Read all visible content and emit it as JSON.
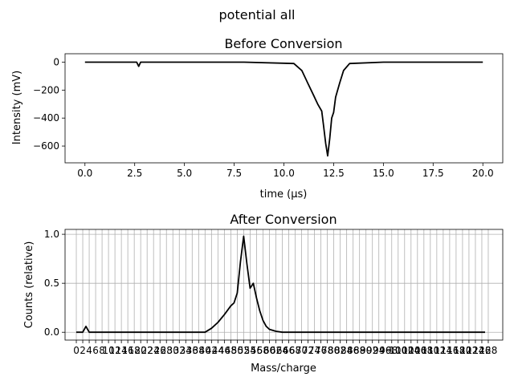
{
  "figure": {
    "suptitle": "potential all"
  },
  "chart_data": [
    {
      "type": "line",
      "title": "Before Conversion",
      "xlabel": "time (μs)",
      "ylabel": "Intensity (mV)",
      "xlim": [
        -1.0,
        21.0
      ],
      "ylim": [
        -720,
        60
      ],
      "grid": false,
      "xticks": [
        0.0,
        2.5,
        5.0,
        7.5,
        10.0,
        12.5,
        15.0,
        17.5,
        20.0
      ],
      "xtick_labels": [
        "0.0",
        "2.5",
        "5.0",
        "7.5",
        "10.0",
        "12.5",
        "15.0",
        "17.5",
        "20.0"
      ],
      "yticks": [
        0,
        -200,
        -400,
        -600
      ],
      "ytick_labels": [
        "0",
        "−200",
        "−400",
        "−600"
      ],
      "series": [
        {
          "color": "#000000",
          "x": [
            0.0,
            2.0,
            2.6,
            2.7,
            2.8,
            5.0,
            8.0,
            10.5,
            10.9,
            11.2,
            11.5,
            11.7,
            11.9,
            12.0,
            12.1,
            12.2,
            12.3,
            12.4,
            12.5,
            12.6,
            12.8,
            13.0,
            13.3,
            15.0,
            18.0,
            20.0
          ],
          "y": [
            0,
            0,
            0,
            -30,
            0,
            0,
            0,
            -10,
            -60,
            -150,
            -240,
            -300,
            -350,
            -460,
            -580,
            -670,
            -550,
            -400,
            -360,
            -250,
            -150,
            -60,
            -10,
            0,
            0,
            0
          ]
        }
      ]
    },
    {
      "type": "line",
      "title": "After Conversion",
      "xlabel": "Mass/charge",
      "ylabel": "Counts (relative)",
      "xlim": [
        -3.5,
        132.5
      ],
      "ylim": [
        -0.08,
        1.05
      ],
      "grid": true,
      "xticks": [
        0,
        2,
        4,
        6,
        8,
        10,
        12,
        14,
        16,
        18,
        20,
        22,
        24,
        26,
        28,
        30,
        32,
        34,
        36,
        38,
        40,
        42,
        44,
        46,
        48,
        50,
        52,
        54,
        56,
        58,
        60,
        62,
        64,
        66,
        68,
        70,
        72,
        74,
        76,
        78,
        80,
        82,
        84,
        86,
        88,
        90,
        92,
        94,
        96,
        98,
        100,
        102,
        104,
        106,
        108,
        110,
        112,
        114,
        116,
        118,
        120,
        122,
        124,
        126,
        128
      ],
      "xtick_labels": [
        "0",
        "2",
        "4",
        "6",
        "8",
        "10",
        "12",
        "14",
        "16",
        "18",
        "20",
        "22",
        "24",
        "26",
        "28",
        "30",
        "32",
        "34",
        "36",
        "38",
        "40",
        "42",
        "44",
        "46",
        "48",
        "50",
        "52",
        "54",
        "56",
        "58",
        "60",
        "62",
        "64",
        "66",
        "68",
        "70",
        "72",
        "74",
        "76",
        "78",
        "80",
        "82",
        "84",
        "86",
        "88",
        "90",
        "92",
        "94",
        "96",
        "98",
        "100",
        "102",
        "104",
        "106",
        "108",
        "110",
        "112",
        "114",
        "116",
        "118",
        "120",
        "122",
        "124",
        "126",
        "128"
      ],
      "yticks": [
        0.0,
        0.5,
        1.0
      ],
      "ytick_labels": [
        "0.0",
        "0.5",
        "1.0"
      ],
      "series": [
        {
          "color": "#000000",
          "x": [
            0,
            2,
            3,
            4,
            5,
            10,
            20,
            30,
            36,
            40,
            42,
            44,
            46,
            48,
            49,
            50,
            51,
            52,
            53,
            54,
            55,
            56,
            57,
            58,
            59,
            60,
            62,
            64,
            66,
            70,
            80,
            100,
            127
          ],
          "y": [
            0,
            0,
            0.06,
            0,
            0,
            0,
            0,
            0,
            0,
            0,
            0.04,
            0.1,
            0.18,
            0.27,
            0.3,
            0.4,
            0.72,
            0.98,
            0.7,
            0.45,
            0.5,
            0.35,
            0.22,
            0.12,
            0.06,
            0.03,
            0.01,
            0,
            0,
            0,
            0,
            0,
            0
          ]
        }
      ]
    }
  ]
}
